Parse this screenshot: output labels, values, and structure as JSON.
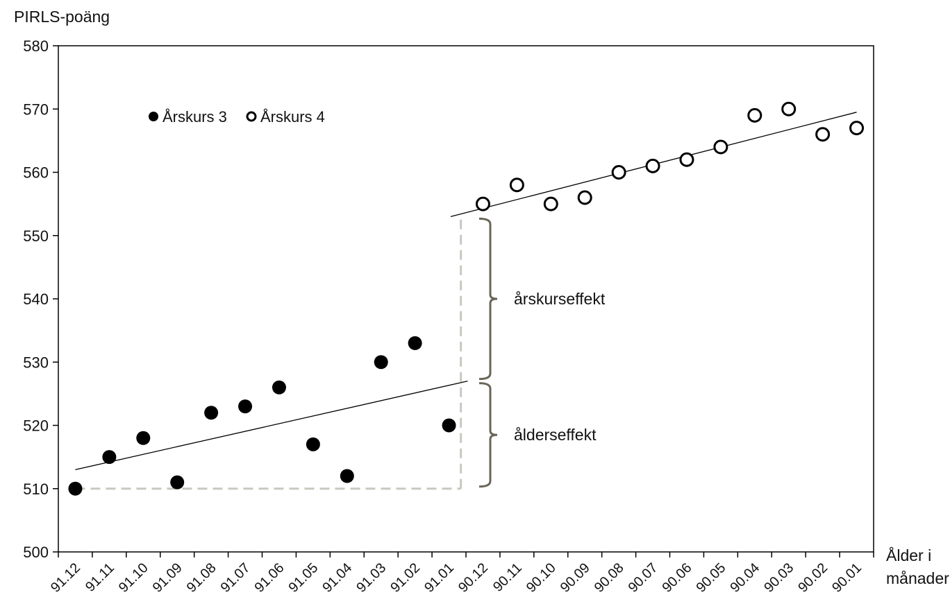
{
  "chart_data": {
    "type": "scatter",
    "ylabel": "PIRLS-poäng",
    "xlabel_line1": "Ålder i",
    "xlabel_line2": "månader",
    "ylim": [
      500,
      580
    ],
    "yticks": [
      500,
      510,
      520,
      530,
      540,
      550,
      560,
      570,
      580
    ],
    "categories": [
      "91.12",
      "91.11",
      "91.10",
      "91.09",
      "91.08",
      "91.07",
      "91.06",
      "91.05",
      "91.04",
      "91.03",
      "91.02",
      "91.01",
      "90.12",
      "90.11",
      "90.10",
      "90.09",
      "90.08",
      "90.07",
      "90.06",
      "90.05",
      "90.04",
      "90.03",
      "90.02",
      "90.01"
    ],
    "series": [
      {
        "name": "Årskurs 3",
        "marker": "filled",
        "x": [
          "91.12",
          "91.11",
          "91.10",
          "91.09",
          "91.08",
          "91.07",
          "91.06",
          "91.05",
          "91.04",
          "91.03",
          "91.02",
          "91.01"
        ],
        "values": [
          510,
          515,
          518,
          511,
          522,
          523,
          526,
          517,
          512,
          530,
          533,
          520
        ],
        "trend": [
          513,
          527
        ]
      },
      {
        "name": "Årskurs 4",
        "marker": "open",
        "x": [
          "90.12",
          "90.11",
          "90.10",
          "90.09",
          "90.08",
          "90.07",
          "90.06",
          "90.05",
          "90.04",
          "90.03",
          "90.02",
          "90.01"
        ],
        "values": [
          555,
          558,
          555,
          556,
          560,
          561,
          562,
          564,
          569,
          570,
          566,
          567
        ],
        "trend": [
          553,
          569.5
        ]
      }
    ],
    "annotations": [
      {
        "label": "årskurseffekt",
        "from": 527,
        "to": 553
      },
      {
        "label": "ålderseffekt",
        "from": 510,
        "to": 527
      }
    ],
    "grid": false,
    "legend_position": "top-left"
  }
}
